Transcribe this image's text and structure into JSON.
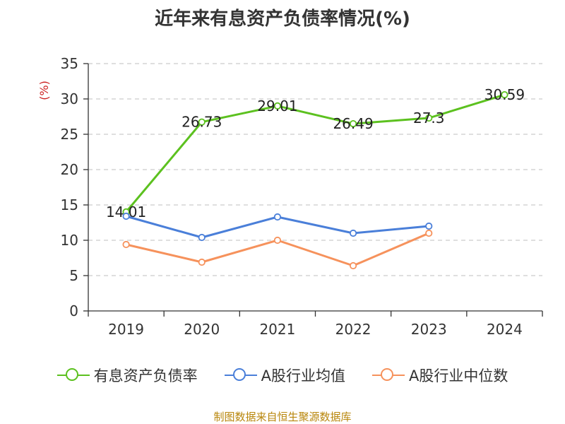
{
  "chart_data": {
    "type": "line",
    "title": "近年来有息资产负债率情况(%)",
    "ylabel": "(%)",
    "categories": [
      "2019",
      "2020",
      "2021",
      "2022",
      "2023",
      "2024"
    ],
    "ylim": [
      0,
      35
    ],
    "yticks": [
      "0",
      "5",
      "10",
      "15",
      "20",
      "25",
      "30",
      "35"
    ],
    "grid": "horizontal dashed",
    "legend_position": "bottom",
    "series": [
      {
        "name": "有息资产负债率",
        "color": "#5cc11f",
        "values": [
          14.01,
          26.73,
          29.01,
          26.49,
          27.3,
          30.59
        ],
        "labels": [
          "14.01",
          "26.73",
          "29.01",
          "26.49",
          "27.3",
          "30.59"
        ]
      },
      {
        "name": "A股行业均值",
        "color": "#4a7fd9",
        "values": [
          13.4,
          10.4,
          13.3,
          11.0,
          12.0,
          null
        ]
      },
      {
        "name": "A股行业中位数",
        "color": "#f6925c",
        "values": [
          9.4,
          6.9,
          10.0,
          6.4,
          11.0,
          null
        ]
      }
    ]
  },
  "footer": {
    "source": "制图数据来自恒生聚源数据库"
  }
}
